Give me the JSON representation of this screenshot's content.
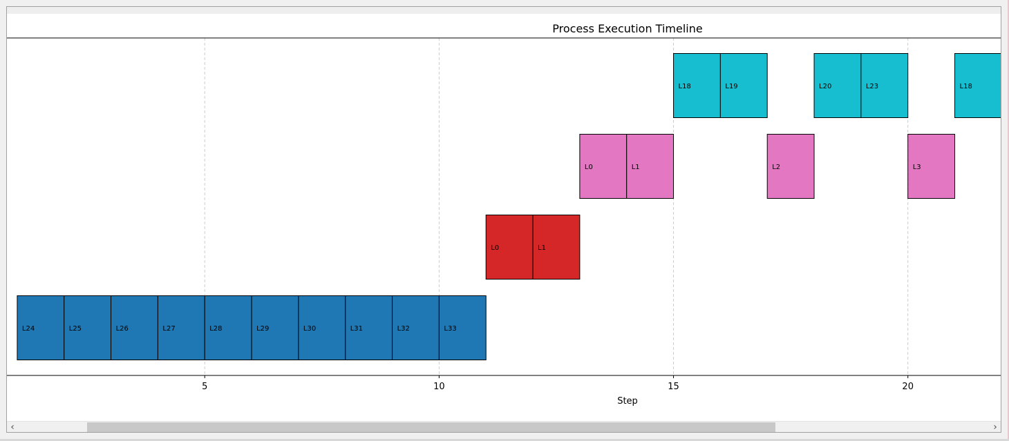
{
  "chart_data": {
    "type": "gantt",
    "title": "Process Execution Timeline",
    "xlabel": "Step",
    "ylabel": "",
    "xlim": [
      0.78,
      21.98
    ],
    "xticks": [
      5,
      10,
      15,
      20
    ],
    "grid": "x-dashed",
    "lanes": [
      {
        "color": "#1f77b4",
        "tasks": [
          {
            "start": 1,
            "end": 2,
            "label": "L24"
          },
          {
            "start": 2,
            "end": 3,
            "label": "L25"
          },
          {
            "start": 3,
            "end": 4,
            "label": "L26"
          },
          {
            "start": 4,
            "end": 5,
            "label": "L27"
          },
          {
            "start": 5,
            "end": 6,
            "label": "L28"
          },
          {
            "start": 6,
            "end": 7,
            "label": "L29"
          },
          {
            "start": 7,
            "end": 8,
            "label": "L30"
          },
          {
            "start": 8,
            "end": 9,
            "label": "L31"
          },
          {
            "start": 9,
            "end": 10,
            "label": "L32"
          },
          {
            "start": 10,
            "end": 11,
            "label": "L33"
          }
        ]
      },
      {
        "color": "#d62728",
        "tasks": [
          {
            "start": 11,
            "end": 12,
            "label": "L0"
          },
          {
            "start": 12,
            "end": 13,
            "label": "L1"
          }
        ]
      },
      {
        "color": "#e377c2",
        "tasks": [
          {
            "start": 13,
            "end": 14,
            "label": "L0"
          },
          {
            "start": 14,
            "end": 15,
            "label": "L1"
          },
          {
            "start": 17,
            "end": 18,
            "label": "L2"
          },
          {
            "start": 20,
            "end": 21,
            "label": "L3"
          }
        ]
      },
      {
        "color": "#17becf",
        "tasks": [
          {
            "start": 15,
            "end": 16,
            "label": "L18"
          },
          {
            "start": 16,
            "end": 17,
            "label": "L19"
          },
          {
            "start": 18,
            "end": 19,
            "label": "L20"
          },
          {
            "start": 19,
            "end": 20,
            "label": "L23"
          },
          {
            "start": 21,
            "end": 22,
            "label": "L18"
          }
        ]
      }
    ]
  },
  "scrollbar": {
    "left_arrow": "‹",
    "right_arrow": "›",
    "thumb_position": 0.07,
    "thumb_fraction": 0.71
  }
}
